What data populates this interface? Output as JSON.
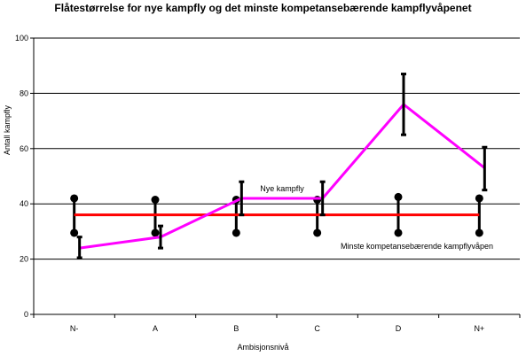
{
  "chart_data": {
    "type": "line",
    "title": "Flåtestørrelse for nye kampfly og det minste kompetansebærende kampflyvåpenet",
    "xlabel": "Ambisjonsnivå",
    "ylabel": "Antall kampfly",
    "categories": [
      "N-",
      "A",
      "B",
      "C",
      "D",
      "N+"
    ],
    "ylim": [
      0,
      100
    ],
    "yticks": [
      0,
      20,
      40,
      60,
      80,
      100
    ],
    "grid": true,
    "series": [
      {
        "name": "Nye kampfly",
        "color": "#ff00ff",
        "values": [
          24,
          28,
          42,
          42,
          76,
          53
        ],
        "error_low": [
          20.5,
          24,
          36,
          36,
          65,
          45
        ],
        "error_high": [
          28,
          32,
          48,
          48,
          87,
          60.5
        ]
      },
      {
        "name": "Minste kompetansebærende kampflyvåpen",
        "color": "#ff0000",
        "values": [
          36,
          36,
          36,
          36,
          36,
          36
        ],
        "range_low": [
          29.5,
          29.5,
          29.5,
          29.5,
          29.5,
          29.5
        ],
        "range_high": [
          42,
          41.5,
          41.5,
          41.5,
          42.5,
          42
        ]
      }
    ],
    "annotations": [
      "Nye kampfly",
      "Minste kompetansebærende kampflyvåpen"
    ]
  }
}
